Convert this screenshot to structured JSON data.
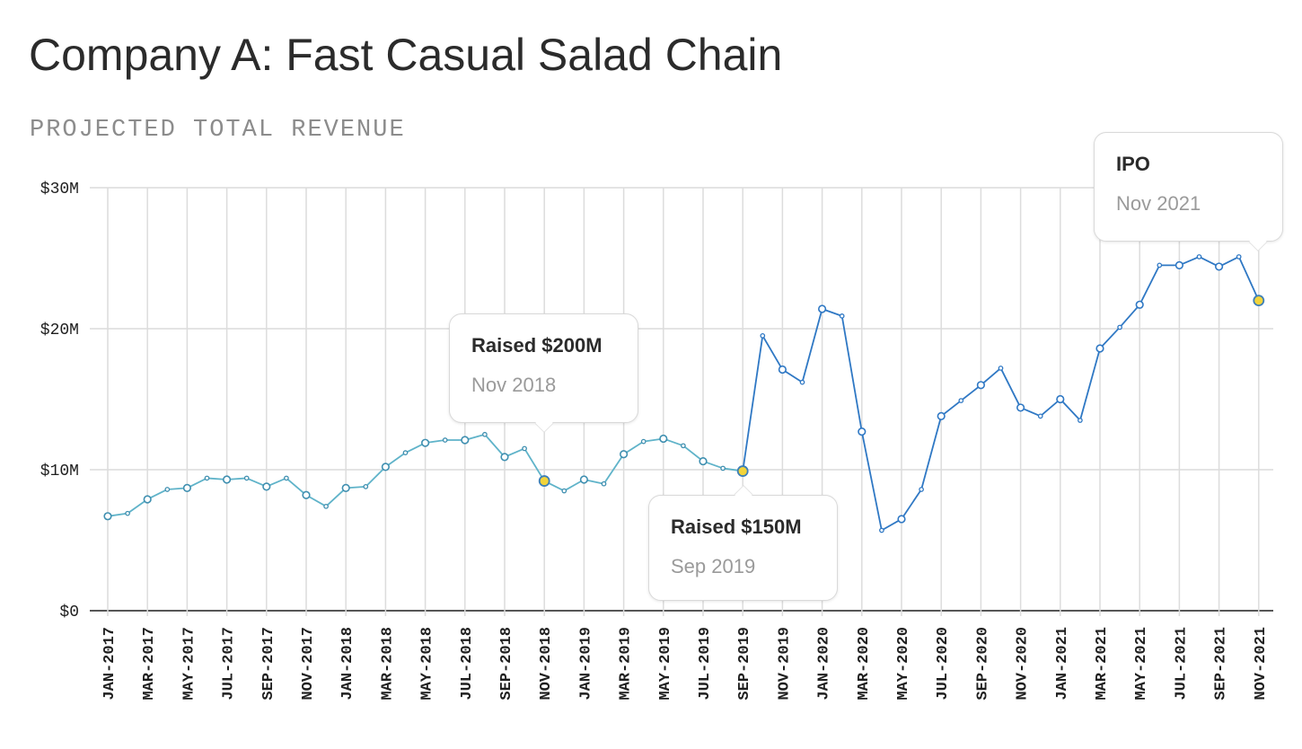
{
  "title": "Company A: Fast Casual Salad Chain",
  "subtitle": "PROJECTED TOTAL REVENUE",
  "colors": {
    "early_line": "#5fb3c9",
    "late_line": "#2f78c4",
    "highlight": "#f2d43b",
    "grid": "#dcdcdc"
  },
  "callouts": [
    {
      "title": "Raised $200M",
      "date": "Nov 2018",
      "month_index": 22
    },
    {
      "title": "Raised $150M",
      "date": "Sep 2019",
      "month_index": 32
    },
    {
      "title": "IPO",
      "date": "Nov 2021",
      "month_index": 58
    }
  ],
  "chart_data": {
    "type": "line",
    "title": "Projected Total Revenue",
    "xlabel": "",
    "ylabel": "",
    "ylim": [
      0,
      30
    ],
    "y_unit": "$M",
    "y_ticks": [
      "$0",
      "$10M",
      "$20M",
      "$30M"
    ],
    "x_tick_labels": [
      "JAN-2017",
      "MAR-2017",
      "MAY-2017",
      "JUL-2017",
      "SEP-2017",
      "NOV-2017",
      "JAN-2018",
      "MAR-2018",
      "MAY-2018",
      "JUL-2018",
      "SEP-2018",
      "NOV-2018",
      "JAN-2019",
      "MAR-2019",
      "MAY-2019",
      "JUL-2019",
      "SEP-2019",
      "NOV-2019",
      "JAN-2020",
      "MAR-2020",
      "MAY-2020",
      "JUL-2020",
      "SEP-2020",
      "NOV-2020",
      "JAN-2021",
      "MAR-2021",
      "MAY-2021",
      "JUL-2021",
      "SEP-2021",
      "NOV-2021"
    ],
    "series": [
      {
        "values": [
          6.7,
          6.9,
          7.9,
          8.6,
          8.7,
          9.4,
          9.3,
          9.4,
          8.8,
          9.4,
          8.2,
          7.4,
          8.7,
          8.8,
          10.2,
          11.2,
          11.9,
          12.1,
          12.1,
          12.5,
          10.9,
          11.5,
          9.2,
          8.5,
          9.3,
          9.0,
          11.1,
          12.0,
          12.2,
          11.7,
          10.6,
          10.1,
          9.9,
          19.5,
          17.1,
          16.2,
          21.4,
          20.9,
          12.7,
          5.7,
          6.5,
          8.6,
          13.8,
          14.9,
          16.0,
          17.2,
          14.4,
          13.8,
          15.0,
          13.5,
          18.6,
          20.1,
          21.7,
          24.5,
          24.5,
          25.1,
          24.4,
          25.1,
          22.0
        ]
      }
    ],
    "highlight_indices": [
      22,
      32,
      58
    ],
    "grid": true
  }
}
